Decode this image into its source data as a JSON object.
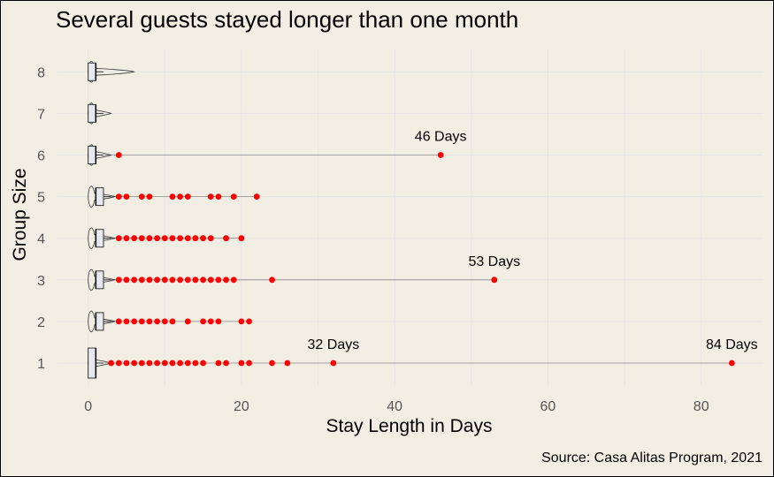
{
  "chart_data": {
    "type": "box-violin",
    "orientation": "horizontal",
    "title": "Several guests stayed longer than one month",
    "xlabel": "Stay Length in Days",
    "ylabel": "Group Size",
    "caption": "Source: Casa Alitas Program, 2021",
    "xlim": [
      -4,
      88
    ],
    "x_ticks": [
      0,
      20,
      40,
      60,
      80
    ],
    "categories": [
      "1",
      "2",
      "3",
      "4",
      "5",
      "6",
      "7",
      "8"
    ],
    "grid": true,
    "colors": {
      "background": "#f2eee3",
      "grid": "#e6e6e6",
      "outlier": "#ff0000",
      "box_fill": "#e8e8f0",
      "segment": "#8c8c8c"
    },
    "groups": [
      {
        "category": "1",
        "min": 0,
        "q1": 0,
        "median": 1,
        "q3": 1,
        "max": 2,
        "violin_extent": 3,
        "outliers": [
          3,
          4,
          5,
          6,
          7,
          8,
          9,
          10,
          11,
          12,
          13,
          14,
          15,
          17,
          18,
          20,
          21,
          24,
          26,
          32,
          84
        ]
      },
      {
        "category": "2",
        "min": 0,
        "q1": 1,
        "median": 1,
        "q3": 2,
        "max": 3,
        "violin_extent": 3.5,
        "outliers": [
          4,
          5,
          6,
          7,
          8,
          9,
          10,
          11,
          13,
          15,
          16,
          17,
          20,
          21
        ]
      },
      {
        "category": "3",
        "min": 0,
        "q1": 1,
        "median": 1,
        "q3": 2,
        "max": 3,
        "violin_extent": 3.5,
        "outliers": [
          4,
          5,
          6,
          7,
          8,
          9,
          10,
          11,
          12,
          13,
          14,
          15,
          16,
          17,
          18,
          19,
          24,
          53
        ]
      },
      {
        "category": "4",
        "min": 0,
        "q1": 1,
        "median": 1,
        "q3": 2,
        "max": 3,
        "violin_extent": 3.5,
        "outliers": [
          4,
          5,
          6,
          7,
          8,
          9,
          10,
          11,
          12,
          13,
          14,
          15,
          16,
          18,
          20
        ]
      },
      {
        "category": "5",
        "min": 0,
        "q1": 1,
        "median": 1,
        "q3": 2,
        "max": 3,
        "violin_extent": 3.5,
        "outliers": [
          4,
          5,
          7,
          8,
          11,
          12,
          13,
          16,
          17,
          19,
          22
        ]
      },
      {
        "category": "6",
        "min": 0,
        "q1": 0,
        "median": 1,
        "q3": 1,
        "max": 2,
        "violin_extent": 3,
        "outliers": [
          4,
          46
        ]
      },
      {
        "category": "7",
        "min": 0,
        "q1": 0,
        "median": 1,
        "q3": 1,
        "max": 2,
        "violin_extent": 3,
        "outliers": []
      },
      {
        "category": "8",
        "min": 0,
        "q1": 0,
        "median": 1,
        "q3": 1,
        "max": 2,
        "violin_extent": 6,
        "outliers": []
      }
    ],
    "annotations": [
      {
        "text": "32 Days",
        "x": 32,
        "category": "1"
      },
      {
        "text": "84 Days",
        "x": 84,
        "category": "1"
      },
      {
        "text": "53 Days",
        "x": 53,
        "category": "3"
      },
      {
        "text": "46 Days",
        "x": 46,
        "category": "6"
      }
    ]
  }
}
